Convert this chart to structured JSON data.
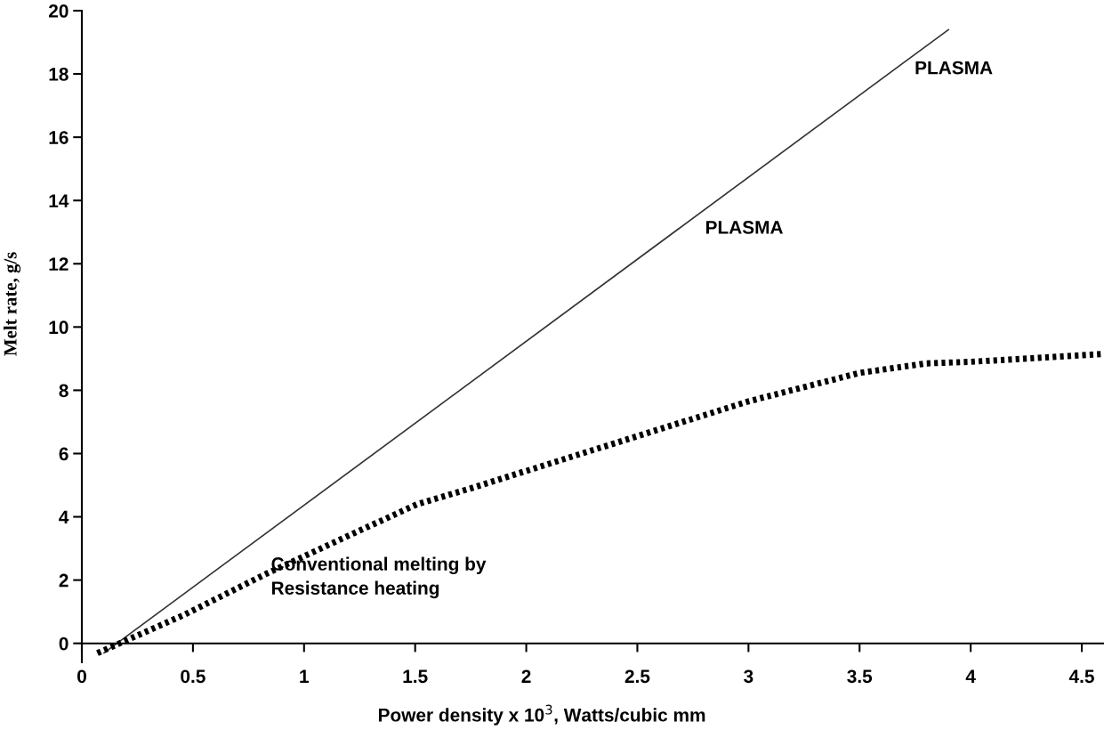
{
  "chart_data": {
    "type": "line",
    "xlabel": "Power density x 10$^{3}$, Watts/cubic mm",
    "ylabel": "Melt rate, g/s",
    "xlim": [
      0,
      4.6
    ],
    "ylim": [
      -0.6,
      20
    ],
    "xticks": [
      0,
      0.5,
      1,
      1.5,
      2,
      2.5,
      3,
      3.5,
      4,
      4.5
    ],
    "yticks": [
      0,
      2,
      4,
      6,
      8,
      10,
      12,
      14,
      16,
      18,
      20
    ],
    "grid": false,
    "legend": false,
    "series": [
      {
        "color": "#333333",
        "line_style": "solid",
        "x": [
          0.1,
          3.9
        ],
        "values": [
          -0.3,
          19.4
        ]
      },
      {
        "color": "#000000",
        "line_style": "dotted",
        "x": [
          0.07,
          0.46,
          0.83,
          1.23,
          1.51,
          1.75,
          2.0,
          2.5,
          3.0,
          3.5,
          3.8,
          4.0,
          4.6
        ],
        "values": [
          -0.31,
          0.9,
          2.2,
          3.5,
          4.4,
          4.9,
          5.45,
          6.55,
          7.65,
          8.55,
          8.85,
          8.9,
          9.15
        ]
      }
    ],
    "annotations": [
      "PLASMA",
      "PLASMA",
      "Conventional melting by\nResistance heating"
    ]
  }
}
